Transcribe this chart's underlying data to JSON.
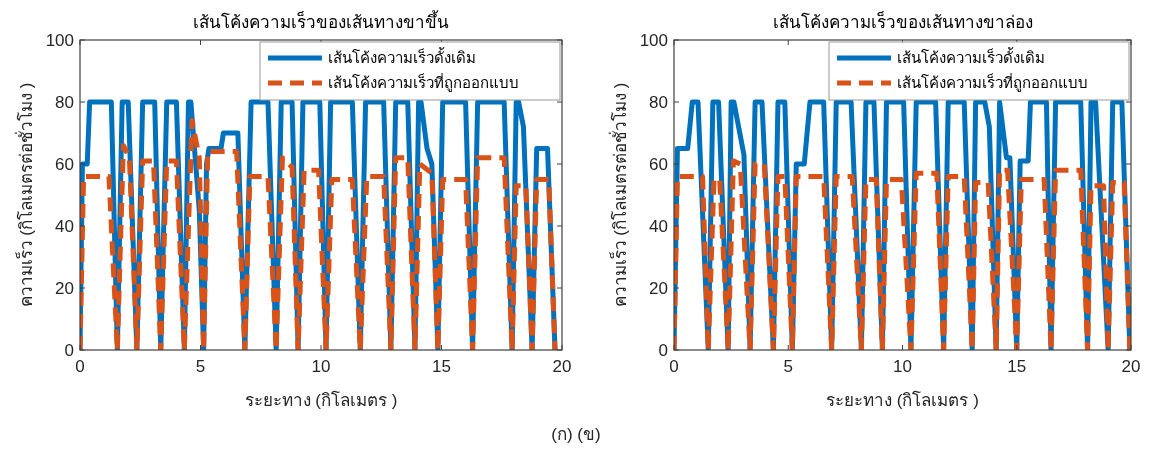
{
  "chart_data": [
    {
      "type": "line",
      "title": "เส้นโค้งความเร็วของเส้นทางขาขึ้น",
      "xlabel": "ระยะทาง (กิโลเมตร )",
      "ylabel": "ความเร็ว (กิโลเมตรต่อชั่วโมง )",
      "xlim": [
        0,
        20
      ],
      "xticks": [
        0,
        5,
        10,
        15,
        20
      ],
      "ylim": [
        0,
        100
      ],
      "yticks": [
        0,
        20,
        40,
        60,
        80,
        100
      ],
      "grid": false,
      "legend": "top right",
      "annotations": [
        "(ก) (ข)"
      ],
      "series": [
        {
          "name": "เส้นโค้งความเร็วดั้งเดิม",
          "color": "#0072bd",
          "line_style": "solid",
          "x": [
            0,
            0.1,
            0.3,
            0.4,
            1.3,
            1.55,
            1.75,
            2.0,
            2.36,
            2.6,
            3.1,
            3.35,
            3.6,
            4.0,
            4.33,
            4.5,
            4.6,
            4.95,
            5.13,
            5.25,
            5.35,
            5.85,
            5.95,
            6.55,
            6.84,
            7.1,
            7.8,
            8.14,
            8.35,
            8.8,
            9.05,
            9.25,
            9.95,
            10.21,
            10.4,
            11.3,
            11.63,
            11.85,
            12.6,
            12.9,
            13.1,
            13.6,
            13.9,
            14.05,
            14.15,
            14.4,
            14.6,
            14.85,
            15.05,
            16.0,
            16.29,
            16.5,
            17.6,
            17.93,
            18.1,
            18.2,
            18.4,
            18.76,
            18.95,
            19.4,
            19.71
          ],
          "values": [
            0,
            60,
            60,
            80,
            80,
            0,
            80,
            80,
            0,
            80,
            80,
            0,
            80,
            80,
            0,
            80,
            80,
            45,
            0,
            60,
            65,
            65,
            70,
            70,
            0,
            80,
            80,
            0,
            80,
            80,
            0,
            80,
            80,
            0,
            80,
            80,
            0,
            80,
            80,
            0,
            80,
            80,
            0,
            80,
            80,
            65,
            60,
            0,
            80,
            80,
            0,
            80,
            80,
            0,
            80,
            80,
            72,
            0,
            65,
            65,
            0
          ]
        },
        {
          "name": "เส้นโค้งความเร็วที่ถูกออกแบบ",
          "color": "#d95319",
          "line_style": "dashed",
          "x": [
            0,
            0.15,
            1.2,
            1.55,
            1.8,
            2.05,
            2.36,
            2.6,
            3.05,
            3.35,
            3.6,
            4.0,
            4.33,
            4.65,
            4.95,
            5.13,
            5.3,
            6.5,
            6.84,
            7.05,
            7.8,
            8.14,
            8.4,
            8.8,
            9.05,
            9.3,
            9.9,
            10.21,
            10.45,
            11.3,
            11.63,
            11.9,
            12.6,
            12.9,
            13.1,
            13.6,
            13.9,
            14.1,
            14.6,
            14.85,
            15.05,
            16.0,
            16.29,
            16.5,
            17.6,
            17.93,
            18.1,
            18.5,
            18.76,
            18.95,
            19.45,
            19.71
          ],
          "values": [
            0,
            56,
            56,
            0,
            66,
            62,
            0,
            61,
            61,
            0,
            61,
            61,
            0,
            74,
            62,
            0,
            64,
            64,
            0,
            56,
            56,
            0,
            62,
            59,
            0,
            58,
            58,
            0,
            55,
            55,
            0,
            56,
            56,
            0,
            62,
            62,
            0,
            60,
            57,
            0,
            55,
            55,
            0,
            62,
            62,
            0,
            53,
            53,
            0,
            55,
            55,
            0
          ]
        }
      ]
    },
    {
      "type": "line",
      "title": "เส้นโค้งความเร็วของเส้นทางขาล่อง",
      "xlabel": "ระยะทาง (กิโลเมตร )",
      "ylabel": "ความเร็ว (กิโลเมตรต่อชั่วโมง )",
      "xlim": [
        0,
        20
      ],
      "xticks": [
        0,
        5,
        10,
        15,
        20
      ],
      "ylim": [
        0,
        100
      ],
      "yticks": [
        0,
        20,
        40,
        60,
        80,
        100
      ],
      "grid": false,
      "legend": "top right",
      "series": [
        {
          "name": "เส้นโค้งความเร็วดั้งเดิม",
          "color": "#0072bd",
          "line_style": "solid",
          "x": [
            0,
            0.15,
            0.6,
            0.8,
            1.05,
            1.5,
            1.7,
            1.95,
            2.37,
            2.5,
            2.62,
            3.06,
            3.33,
            3.55,
            3.85,
            4.35,
            4.55,
            4.85,
            5.18,
            5.35,
            5.7,
            5.95,
            6.55,
            6.9,
            7.1,
            7.75,
            8.2,
            8.4,
            8.75,
            9.12,
            9.3,
            10.05,
            10.37,
            10.6,
            11.45,
            11.8,
            12.0,
            12.7,
            13.05,
            13.2,
            13.6,
            13.8,
            14.1,
            14.25,
            14.55,
            14.7,
            15.0,
            15.15,
            15.5,
            15.6,
            16.3,
            16.5,
            16.7,
            17.8,
            18.1,
            18.25,
            18.45,
            19.0,
            19.2,
            19.6,
            19.95
          ],
          "values": [
            0,
            65,
            65,
            80,
            80,
            0,
            80,
            80,
            0,
            80,
            80,
            63,
            0,
            80,
            80,
            0,
            80,
            80,
            0,
            60,
            60,
            80,
            80,
            0,
            80,
            80,
            0,
            80,
            80,
            0,
            80,
            80,
            0,
            80,
            80,
            0,
            80,
            80,
            0,
            80,
            80,
            72,
            0,
            80,
            62,
            62,
            0,
            61,
            61,
            80,
            80,
            0,
            80,
            80,
            0,
            80,
            80,
            0,
            80,
            80,
            0
          ]
        },
        {
          "name": "เส้นโค้งความเร็วที่ถูกออกแบบ",
          "color": "#d95319",
          "line_style": "dashed",
          "x": [
            0,
            0.15,
            1.25,
            1.5,
            1.75,
            2.0,
            2.37,
            2.6,
            2.9,
            3.33,
            3.55,
            3.95,
            4.35,
            4.55,
            4.85,
            5.18,
            5.35,
            6.55,
            6.9,
            7.1,
            7.8,
            8.2,
            8.4,
            8.85,
            9.12,
            9.3,
            9.95,
            10.37,
            10.6,
            11.5,
            11.8,
            12.0,
            12.7,
            13.05,
            13.2,
            13.75,
            14.1,
            14.25,
            14.6,
            15.0,
            15.2,
            16.2,
            16.5,
            16.7,
            17.8,
            18.1,
            18.25,
            18.8,
            19.0,
            19.2,
            19.7,
            19.95
          ],
          "values": [
            0,
            56,
            56,
            0,
            55,
            55,
            0,
            61,
            60,
            0,
            60,
            60,
            0,
            56,
            56,
            0,
            56,
            56,
            0,
            56,
            56,
            0,
            55,
            55,
            0,
            55,
            55,
            0,
            57,
            57,
            0,
            56,
            56,
            0,
            54,
            54,
            0,
            58,
            58,
            0,
            55,
            55,
            0,
            58,
            58,
            0,
            53,
            53,
            0,
            54,
            54,
            0
          ]
        }
      ]
    }
  ]
}
